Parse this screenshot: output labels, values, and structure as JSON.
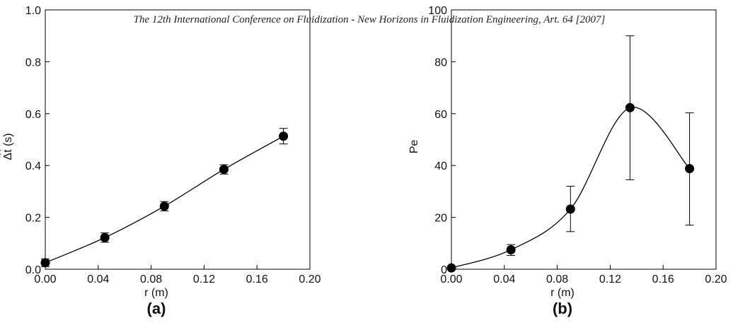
{
  "header": "The 12th International Conference on Fluidization - New Horizons in Fluidization Engineering, Art. 64 [2007]",
  "chart_data": [
    {
      "type": "scatter",
      "panel_label": "(a)",
      "xlabel": "r (m)",
      "ylabel": "Δt (s)",
      "ylabel_hat": "^",
      "xlim": [
        0.0,
        0.2
      ],
      "ylim": [
        0.0,
        1.0
      ],
      "xticks": [
        "0.00",
        "0.04",
        "0.08",
        "0.12",
        "0.16",
        "0.20"
      ],
      "yticks": [
        "0.0",
        "0.2",
        "0.4",
        "0.6",
        "0.8",
        "1.0"
      ],
      "x": [
        0.0,
        0.045,
        0.09,
        0.135,
        0.18
      ],
      "y": [
        0.025,
        0.122,
        0.243,
        0.385,
        0.513
      ],
      "yerr_low": [
        0.015,
        0.018,
        0.018,
        0.018,
        0.03
      ],
      "yerr_high": [
        0.015,
        0.018,
        0.018,
        0.018,
        0.03
      ],
      "fit_curve": true,
      "grid": false
    },
    {
      "type": "scatter",
      "panel_label": "(b)",
      "xlabel": "r (m)",
      "ylabel": "Pe",
      "xlim": [
        0.0,
        0.2
      ],
      "ylim": [
        0,
        100
      ],
      "xticks": [
        "0.00",
        "0.04",
        "0.08",
        "0.12",
        "0.16",
        "0.20"
      ],
      "yticks": [
        "0",
        "20",
        "40",
        "60",
        "80",
        "100"
      ],
      "x": [
        0.0,
        0.045,
        0.09,
        0.135,
        0.18
      ],
      "y": [
        0.5,
        7.5,
        23.2,
        62.3,
        38.8
      ],
      "yerr_low": [
        0.5,
        2.2,
        8.7,
        27.8,
        21.8
      ],
      "yerr_high": [
        0.5,
        2.0,
        8.8,
        27.7,
        21.5
      ],
      "fit_curve": true,
      "grid": false
    }
  ]
}
